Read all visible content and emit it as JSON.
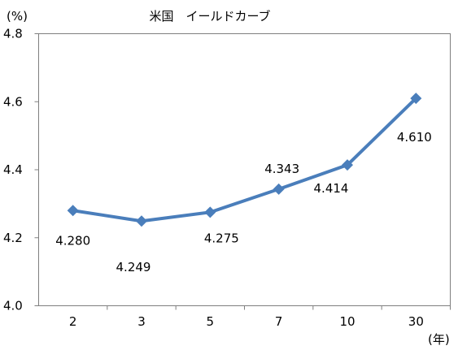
{
  "chart_data": {
    "type": "line",
    "title": "米国　イールドカーブ",
    "ylabel": "(%)",
    "xlabel": "(年)",
    "categories": [
      "2",
      "3",
      "5",
      "7",
      "10",
      "30"
    ],
    "series": [
      {
        "values": [
          4.28,
          4.249,
          4.275,
          4.343,
          4.414,
          4.61
        ]
      }
    ],
    "data_labels": [
      "4.280",
      "4.249",
      "4.275",
      "4.343",
      "4.414",
      "4.610"
    ],
    "yticks": [
      "4.0",
      "4.2",
      "4.4",
      "4.6",
      "4.8"
    ],
    "ylim": [
      4.0,
      4.8
    ],
    "grid": false,
    "legend": "none",
    "line_color": "#4a7ebb",
    "marker": "diamond"
  }
}
